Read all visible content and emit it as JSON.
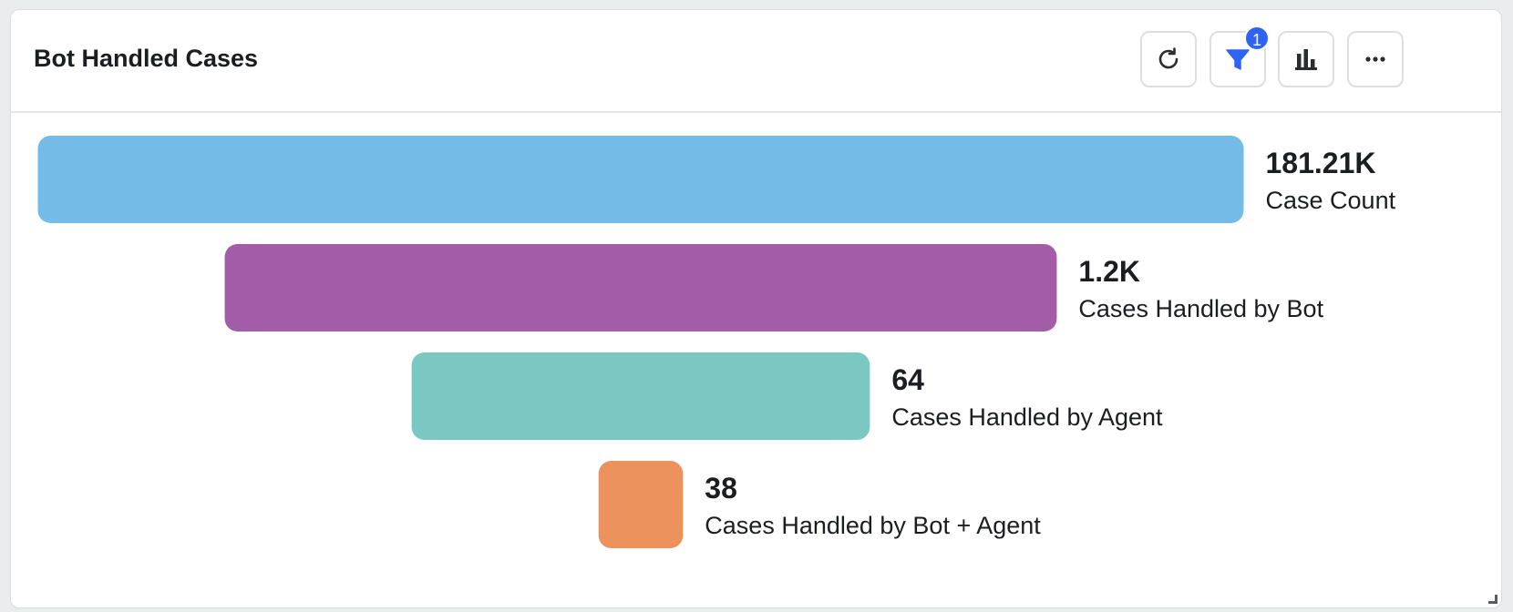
{
  "widget": {
    "title": "Bot Handled Cases",
    "toolbar": {
      "refresh_icon": "refresh-icon",
      "filter_icon": "filter-icon",
      "filter_badge": "1",
      "chart_icon": "bar-chart-icon",
      "more_icon": "more-horizontal-icon"
    }
  },
  "colors": {
    "accent": "#2f63f2"
  },
  "chart_data": {
    "type": "bar",
    "subtype": "funnel",
    "title": "Bot Handled Cases",
    "categories": [
      "Case Count",
      "Cases Handled by Bot",
      "Cases Handled by Agent",
      "Cases Handled by Bot + Agent"
    ],
    "values": [
      181210,
      1200,
      64,
      38
    ],
    "value_labels": [
      "181.21K",
      "1.2K",
      "64",
      "38"
    ],
    "relative_widths": [
      1.0,
      0.69,
      0.38,
      0.07
    ],
    "colors": [
      "#74bbe8",
      "#a25ca8",
      "#7bc7c1",
      "#ec935d"
    ],
    "legend": "none",
    "grid": false
  }
}
